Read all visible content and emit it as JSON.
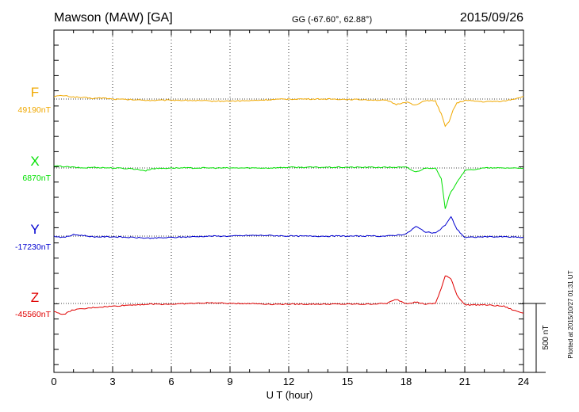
{
  "header": {
    "station": "Mawson (MAW)  [GA]",
    "coords": "GG (-67.60°,  62.88°)",
    "date": "2015/09/26"
  },
  "footer": {
    "xlabel": "U T (hour)",
    "plotted": "Plotted at 2015/10/27 01:31  UT",
    "scale_label": "500 nT"
  },
  "colors": {
    "F": "#f0a800",
    "X": "#00e000",
    "Y": "#0000d0",
    "Z": "#e00000",
    "axis": "#000000"
  },
  "chart_data": {
    "type": "line",
    "xlabel": "U T (hour)",
    "xlim": [
      0,
      24
    ],
    "xticks": [
      0,
      3,
      6,
      9,
      12,
      15,
      18,
      21,
      24
    ],
    "y_unit": "nT",
    "scale_bar_nT": 500,
    "grid": true,
    "series": [
      {
        "name": "F",
        "baseline": "49190nT",
        "color": "#f0a800",
        "points": [
          [
            0,
            20
          ],
          [
            0.5,
            25
          ],
          [
            1,
            15
          ],
          [
            1.5,
            10
          ],
          [
            2,
            5
          ],
          [
            2.5,
            8
          ],
          [
            3,
            0
          ],
          [
            4,
            -5
          ],
          [
            5,
            -10
          ],
          [
            6,
            -8
          ],
          [
            7,
            -10
          ],
          [
            8,
            -15
          ],
          [
            9,
            -15
          ],
          [
            10,
            -12
          ],
          [
            11,
            -5
          ],
          [
            12,
            0
          ],
          [
            13,
            0
          ],
          [
            14,
            0
          ],
          [
            15,
            -2
          ],
          [
            16,
            -5
          ],
          [
            17,
            -10
          ],
          [
            17.5,
            -40
          ],
          [
            18,
            -20
          ],
          [
            18.5,
            -45
          ],
          [
            19,
            -10
          ],
          [
            19.5,
            -15
          ],
          [
            19.8,
            -110
          ],
          [
            20,
            -200
          ],
          [
            20.2,
            -160
          ],
          [
            20.4,
            -80
          ],
          [
            20.6,
            -30
          ],
          [
            21,
            -10
          ],
          [
            22,
            -20
          ],
          [
            23,
            -15
          ],
          [
            23.5,
            0
          ],
          [
            24,
            20
          ]
        ]
      },
      {
        "name": "X",
        "baseline": "6870nT",
        "color": "#00e000",
        "points": [
          [
            0,
            15
          ],
          [
            0.5,
            10
          ],
          [
            1,
            5
          ],
          [
            1.5,
            0
          ],
          [
            2,
            5
          ],
          [
            3,
            0
          ],
          [
            4,
            -5
          ],
          [
            4.7,
            -20
          ],
          [
            5,
            -5
          ],
          [
            6,
            0
          ],
          [
            7,
            0
          ],
          [
            8,
            0
          ],
          [
            9,
            0
          ],
          [
            10,
            0
          ],
          [
            11,
            0
          ],
          [
            12,
            5
          ],
          [
            13,
            5
          ],
          [
            14,
            5
          ],
          [
            15,
            5
          ],
          [
            16,
            5
          ],
          [
            17,
            5
          ],
          [
            18,
            5
          ],
          [
            18.5,
            -30
          ],
          [
            19,
            0
          ],
          [
            19.5,
            0
          ],
          [
            19.8,
            -80
          ],
          [
            20,
            -300
          ],
          [
            20.2,
            -200
          ],
          [
            20.4,
            -150
          ],
          [
            20.6,
            -100
          ],
          [
            21,
            -20
          ],
          [
            22,
            0
          ],
          [
            23,
            0
          ],
          [
            24,
            0
          ]
        ]
      },
      {
        "name": "Y",
        "baseline": "-17230nT",
        "color": "#0000d0",
        "points": [
          [
            0,
            0
          ],
          [
            0.5,
            -10
          ],
          [
            1,
            10
          ],
          [
            1.5,
            5
          ],
          [
            2,
            -5
          ],
          [
            3,
            -5
          ],
          [
            4,
            -10
          ],
          [
            5,
            -15
          ],
          [
            6,
            -10
          ],
          [
            7,
            -5
          ],
          [
            8,
            0
          ],
          [
            9,
            0
          ],
          [
            10,
            5
          ],
          [
            11,
            5
          ],
          [
            12,
            0
          ],
          [
            13,
            0
          ],
          [
            14,
            0
          ],
          [
            15,
            0
          ],
          [
            16,
            0
          ],
          [
            17,
            0
          ],
          [
            18,
            15
          ],
          [
            18.5,
            70
          ],
          [
            19,
            30
          ],
          [
            19.5,
            20
          ],
          [
            20,
            80
          ],
          [
            20.3,
            140
          ],
          [
            20.6,
            50
          ],
          [
            21,
            -10
          ],
          [
            22,
            -5
          ],
          [
            23,
            -5
          ],
          [
            24,
            -10
          ]
        ]
      },
      {
        "name": "Z",
        "baseline": "-45560nT",
        "color": "#e00000",
        "points": [
          [
            0,
            -60
          ],
          [
            0.5,
            -80
          ],
          [
            1,
            -45
          ],
          [
            1.5,
            -40
          ],
          [
            2,
            -30
          ],
          [
            3,
            -20
          ],
          [
            4,
            -10
          ],
          [
            5,
            -5
          ],
          [
            6,
            -5
          ],
          [
            7,
            0
          ],
          [
            8,
            5
          ],
          [
            9,
            0
          ],
          [
            10,
            0
          ],
          [
            11,
            -5
          ],
          [
            12,
            -5
          ],
          [
            13,
            -5
          ],
          [
            14,
            -5
          ],
          [
            15,
            -5
          ],
          [
            16,
            -5
          ],
          [
            17,
            0
          ],
          [
            17.5,
            30
          ],
          [
            18,
            0
          ],
          [
            18.5,
            10
          ],
          [
            19,
            -5
          ],
          [
            19.5,
            0
          ],
          [
            19.8,
            110
          ],
          [
            20,
            200
          ],
          [
            20.3,
            180
          ],
          [
            20.6,
            60
          ],
          [
            21,
            -10
          ],
          [
            22,
            -10
          ],
          [
            23,
            -20
          ],
          [
            23.5,
            -50
          ],
          [
            24,
            -70
          ]
        ]
      }
    ]
  }
}
